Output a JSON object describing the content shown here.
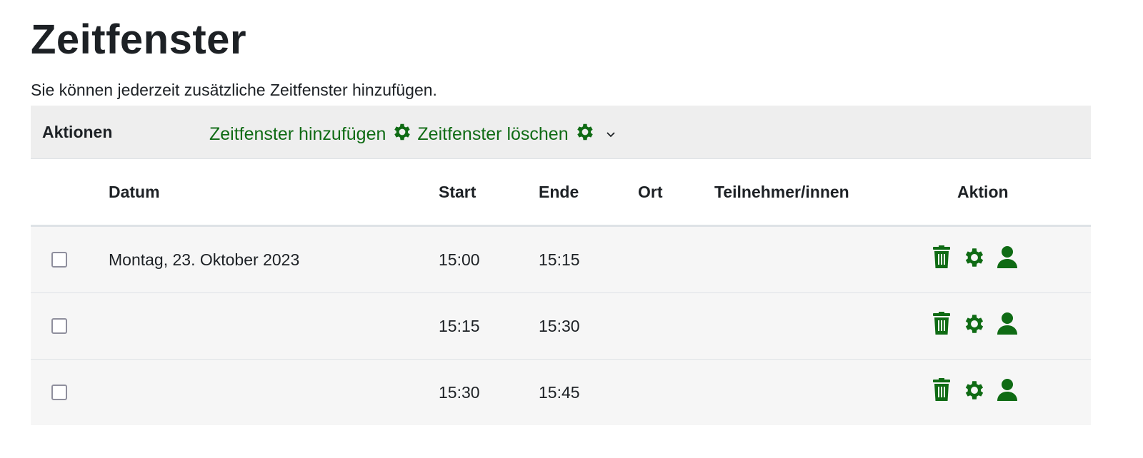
{
  "page": {
    "title": "Zeitfenster",
    "intro": "Sie können jederzeit zusätzliche Zeitfenster hinzufügen."
  },
  "actions": {
    "label": "Aktionen",
    "add_label": "Zeitfenster hinzufügen",
    "delete_label": "Zeitfenster löschen"
  },
  "table": {
    "headers": {
      "date": "Datum",
      "start": "Start",
      "end": "Ende",
      "location": "Ort",
      "participants": "Teilnehmer/innen",
      "action": "Aktion"
    },
    "rows": [
      {
        "date": "Montag, 23. Oktober 2023",
        "start": "15:00",
        "end": "15:15",
        "location": "",
        "participants": ""
      },
      {
        "date": "",
        "start": "15:15",
        "end": "15:30",
        "location": "",
        "participants": ""
      },
      {
        "date": "",
        "start": "15:30",
        "end": "15:45",
        "location": "",
        "participants": ""
      }
    ]
  },
  "colors": {
    "accent": "#0f6b14",
    "header_bg": "#eeeeee",
    "row_bg": "#f6f6f6"
  },
  "icons": [
    "gear-icon",
    "chevron-down-icon",
    "trash-icon",
    "user-icon"
  ]
}
